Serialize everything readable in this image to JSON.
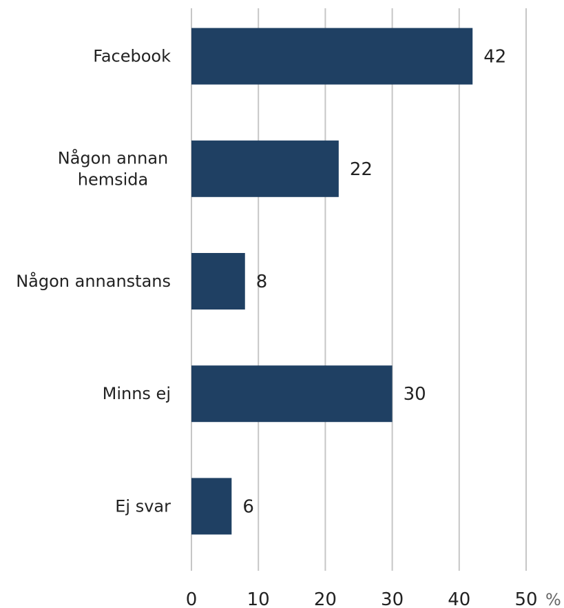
{
  "chart_data": {
    "type": "bar",
    "orientation": "horizontal",
    "title": "",
    "xlabel": "",
    "ylabel": "",
    "unit": "%",
    "categories": [
      [
        "Facebook"
      ],
      [
        "Någon annan",
        "hemsida"
      ],
      [
        "Någon annanstans"
      ],
      [
        "Minns ej"
      ],
      [
        "Ej svar"
      ]
    ],
    "values": [
      42,
      22,
      8,
      30,
      6
    ],
    "xlim": [
      0,
      50
    ],
    "ticks": [
      0,
      10,
      20,
      30,
      40,
      50
    ],
    "grid": true,
    "bar_color": "#1f4063",
    "grid_color": "#c6c6c6"
  }
}
